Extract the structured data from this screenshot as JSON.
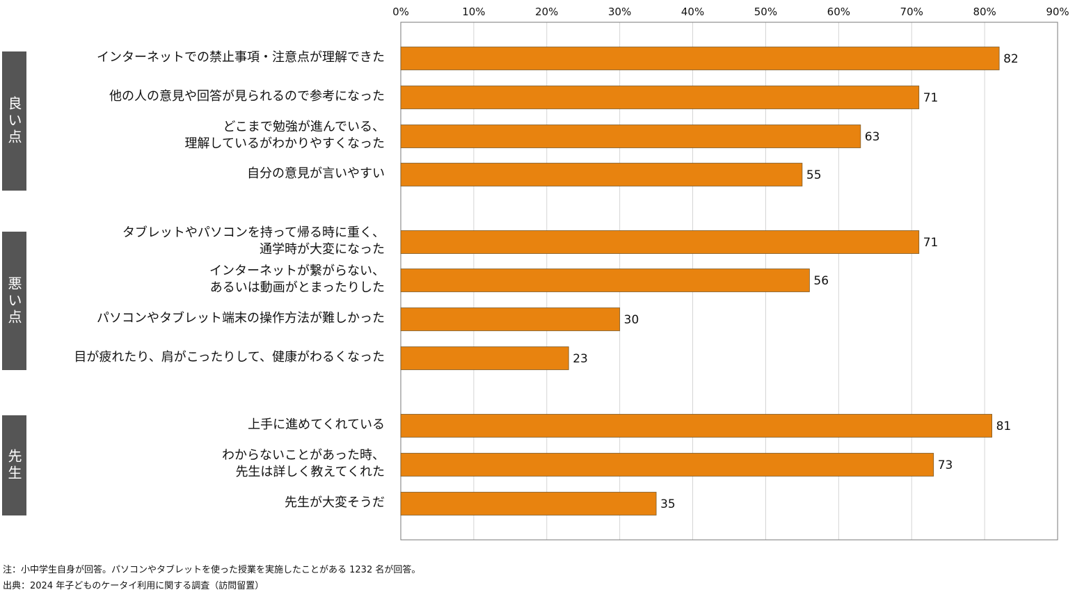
{
  "chart_data": {
    "type": "bar",
    "orientation": "horizontal",
    "xlim": [
      0,
      90
    ],
    "x_ticks": [
      "0%",
      "10%",
      "20%",
      "30%",
      "40%",
      "50%",
      "60%",
      "70%",
      "80%",
      "90%"
    ],
    "grid": true,
    "bar_color": "#E8830F",
    "group_color": "#555555",
    "groups": [
      {
        "name": "良い点",
        "items": [
          {
            "label": "インターネットでの禁止事項・注意点が理解できた",
            "value": 82
          },
          {
            "label": "他の人の意見や回答が見られるので参考になった",
            "value": 71
          },
          {
            "label": "どこまで勉強が進んでいる、\n理解しているがわかりやすくなった",
            "value": 63
          },
          {
            "label": "自分の意見が言いやすい",
            "value": 55
          }
        ]
      },
      {
        "name": "悪い点",
        "items": [
          {
            "label": "タブレットやパソコンを持って帰る時に重く、\n通学時が大変になった",
            "value": 71
          },
          {
            "label": "インターネットが繋がらない、\nあるいは動画がとまったりした",
            "value": 56
          },
          {
            "label": "パソコンやタブレット端末の操作方法が難しかった",
            "value": 30
          },
          {
            "label": "目が疲れたり、肩がこったりして、健康がわるくなった",
            "value": 23
          }
        ]
      },
      {
        "name": "先生",
        "items": [
          {
            "label": "上手に進めてくれている",
            "value": 81
          },
          {
            "label": "わからないことがあった時、\n先生は詳しく教えてくれた",
            "value": 73
          },
          {
            "label": "先生が大変そうだ",
            "value": 35
          }
        ]
      }
    ]
  },
  "notes": {
    "note": "注：小中学生自身が回答。パソコンやタブレットを使った授業を実施したことがある 1232 名が回答。",
    "source": "出典：2024 年子どものケータイ利用に関する調査（訪問留置）"
  }
}
